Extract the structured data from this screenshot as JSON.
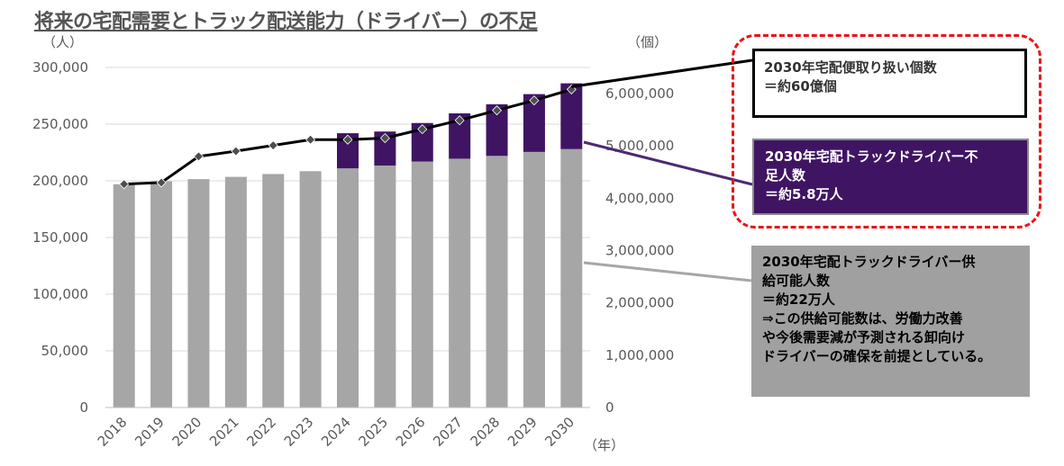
{
  "title": "将来の宅配需要とトラック配送能力（ドライバー）の不足",
  "colors": {
    "supply_bar": "#a6a6a6",
    "shortage_bar": "#3f1563",
    "demand_line": "#000000",
    "marker": "#4d4d4d",
    "frame": "#e8151b"
  },
  "chart_data": {
    "type": "bar",
    "stacked": true,
    "categories": [
      "2018",
      "2019",
      "2020",
      "2021",
      "2022",
      "2023",
      "2024",
      "2025",
      "2026",
      "2027",
      "2028",
      "2029",
      "2030"
    ],
    "series": [
      {
        "values": [
          197000,
          199500,
          201500,
          203500,
          206000,
          208500,
          211000,
          213500,
          217000,
          219500,
          222000,
          225500,
          228000
        ]
      },
      {
        "values": [
          0,
          0,
          0,
          0,
          0,
          0,
          31000,
          30000,
          34000,
          40000,
          45500,
          51000,
          58000
        ]
      },
      {
        "axis": "right",
        "type": "line",
        "values": [
          4270000,
          4300000,
          4800000,
          4900000,
          5010000,
          5120000,
          5120000,
          5150000,
          5320000,
          5490000,
          5680000,
          5870000,
          6080000
        ]
      }
    ],
    "y_left": {
      "unit": "（人）",
      "ylim": [
        0,
        300000
      ],
      "ticks": [
        "0",
        "50,000",
        "100,000",
        "150,000",
        "200,000",
        "250,000",
        "300,000"
      ]
    },
    "y_right": {
      "unit": "（個）",
      "ylim": [
        0,
        6500000
      ],
      "ticks": [
        "0",
        "1,000,000",
        "2,000,000",
        "3,000,000",
        "4,000,000",
        "5,000,000",
        "6,000,000"
      ]
    },
    "x_unit": "（年）",
    "grid": true
  },
  "annotations": {
    "total": [
      "2030年宅配便取り扱い個数",
      "＝約60億個"
    ],
    "shortage": [
      "2030年宅配トラックドライバー不",
      "足人数",
      "＝約5.8万人"
    ],
    "supply": [
      "2030年宅配トラックドライバー供",
      "給可能人数",
      "＝約22万人",
      "⇒この供給可能数は、労働力改善",
      "や今後需要減が予測される卸向け",
      "ドライバーの確保を前提としている。"
    ]
  }
}
